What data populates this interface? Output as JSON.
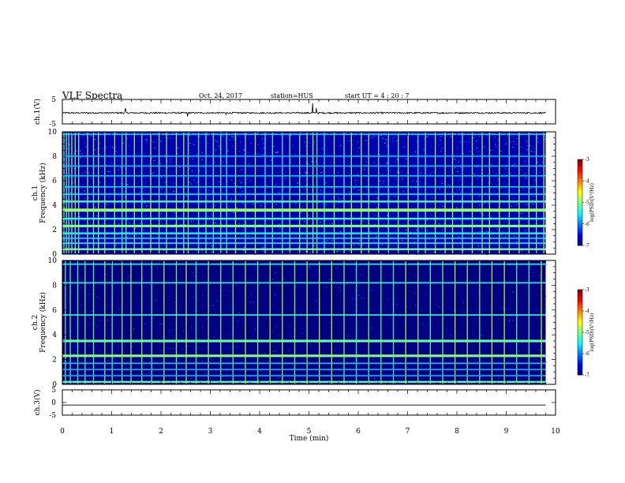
{
  "header": {
    "title": "VLF Spectra",
    "date": "Oct. 24, 2017",
    "station": "station=HUS",
    "start_ut": "start  UT  =   4 : 20 : 7"
  },
  "colors": {
    "background_spectrogram": "#000014",
    "noise": "#0a1a8c",
    "band_cyan": "#19c8f0",
    "band_green": "#3cf07a",
    "line_black": "#000000"
  },
  "chart_data": [
    {
      "type": "line",
      "name": "ch1-waveform",
      "ylabel": "ch.1(V)",
      "ylim": [
        -5,
        5
      ],
      "yticks": [
        "5",
        "-5"
      ],
      "xlim": [
        0,
        10
      ],
      "baseline": -0.5,
      "noise_amplitude": 0.3,
      "spikes": [
        {
          "t": 1.28,
          "v": 1.2
        },
        {
          "t": 2.54,
          "v": -2.0
        },
        {
          "t": 3.32,
          "v": -1.2
        },
        {
          "t": 5.07,
          "v": 3.5
        },
        {
          "t": 5.15,
          "v": 1.5
        }
      ]
    },
    {
      "type": "heatmap",
      "name": "ch1-spectrogram",
      "ylabel": "ch.1 Frequency (kHz)",
      "ylim": [
        0,
        10
      ],
      "yticks": [
        "0",
        "2",
        "4",
        "6",
        "8",
        "10"
      ],
      "xlim": [
        0,
        9.8
      ],
      "background_level": -6.3,
      "bands_khz": [
        {
          "f": 0.4,
          "w": 0.15,
          "level": -5.0
        },
        {
          "f": 0.9,
          "w": 0.1,
          "level": -5.5
        },
        {
          "f": 1.3,
          "w": 0.1,
          "level": -5.6
        },
        {
          "f": 1.7,
          "w": 0.15,
          "level": -5.4
        },
        {
          "f": 2.3,
          "w": 0.2,
          "level": -5.0
        },
        {
          "f": 2.9,
          "w": 0.15,
          "level": -5.3
        },
        {
          "f": 3.6,
          "w": 0.25,
          "level": -4.9
        },
        {
          "f": 4.3,
          "w": 0.15,
          "level": -5.2
        },
        {
          "f": 4.9,
          "w": 0.1,
          "level": -5.5
        },
        {
          "f": 5.5,
          "w": 0.1,
          "level": -5.6
        },
        {
          "f": 6.4,
          "w": 0.1,
          "level": -5.7
        },
        {
          "f": 7.2,
          "w": 0.1,
          "level": -5.7
        },
        {
          "f": 8.0,
          "w": 0.1,
          "level": -5.7
        },
        {
          "f": 9.8,
          "w": 0.1,
          "level": -5.6
        }
      ],
      "spherics_min": [
        0.02,
        0.07,
        0.12,
        0.18,
        0.25,
        0.32,
        0.5,
        0.62,
        0.72,
        0.85,
        1.05,
        1.2,
        1.28,
        1.45,
        1.6,
        1.78,
        1.95,
        2.1,
        2.3,
        2.45,
        2.54,
        2.75,
        2.9,
        3.05,
        3.2,
        3.32,
        3.5,
        3.7,
        3.9,
        4.1,
        4.25,
        4.45,
        4.6,
        4.8,
        4.95,
        5.07,
        5.15,
        5.3,
        5.5,
        5.7,
        5.85,
        6.05,
        6.2,
        6.4,
        6.6,
        6.8,
        7.0,
        7.2,
        7.35,
        7.55,
        7.75,
        7.9,
        8.1,
        8.3,
        8.5,
        8.65,
        8.85,
        9.05,
        9.25,
        9.45,
        9.6,
        9.75
      ]
    },
    {
      "type": "heatmap",
      "name": "ch2-spectrogram",
      "ylabel": "ch.2 Frequency (kHz)",
      "ylim": [
        0,
        10
      ],
      "yticks": [
        "0",
        "2",
        "4",
        "6",
        "8",
        "10"
      ],
      "xlim": [
        0,
        9.8
      ],
      "background_level": -6.8,
      "bands_khz": [
        {
          "f": 0.2,
          "w": 0.15,
          "level": -5.2
        },
        {
          "f": 0.7,
          "w": 0.1,
          "level": -5.8
        },
        {
          "f": 1.2,
          "w": 0.1,
          "level": -5.8
        },
        {
          "f": 1.7,
          "w": 0.1,
          "level": -5.7
        },
        {
          "f": 2.3,
          "w": 0.2,
          "level": -5.0
        },
        {
          "f": 3.5,
          "w": 0.2,
          "level": -5.1
        },
        {
          "f": 5.6,
          "w": 0.1,
          "level": -5.3
        },
        {
          "f": 8.2,
          "w": 0.1,
          "level": -5.4
        },
        {
          "f": 9.7,
          "w": 0.1,
          "level": -5.4
        }
      ],
      "spherics_min": [
        0.05,
        0.15,
        0.3,
        0.45,
        0.62,
        0.85,
        1.0,
        1.2,
        1.38,
        1.6,
        1.8,
        2.05,
        2.3,
        2.5,
        2.7,
        2.95,
        3.2,
        3.45,
        3.7,
        3.95,
        4.2,
        4.45,
        4.7,
        4.95,
        5.2,
        5.45,
        5.7,
        5.95,
        6.2,
        6.45,
        6.7,
        6.95,
        7.2,
        7.45,
        7.7,
        7.95,
        8.2,
        8.45,
        8.7,
        8.95,
        9.2,
        9.45,
        9.7
      ]
    },
    {
      "type": "line",
      "name": "ch3-waveform",
      "ylabel": "ch.3(V)",
      "ylim": [
        -5,
        5
      ],
      "yticks": [
        "5",
        "0",
        "-5"
      ],
      "xlim": [
        0,
        10
      ],
      "baseline": -1.0,
      "noise_amplitude": 0.0
    }
  ],
  "x_axis": {
    "label": "Time  (min)",
    "ticks": [
      "0",
      "1",
      "2",
      "3",
      "4",
      "5",
      "6",
      "7",
      "8",
      "9",
      "10"
    ],
    "range": [
      0,
      10
    ]
  },
  "colorbar": {
    "label": "log(PSD)(V²/Hz)",
    "ticks": [
      "-3",
      "-4",
      "-5",
      "-6",
      "-7"
    ],
    "range": [
      -7,
      -3
    ]
  }
}
